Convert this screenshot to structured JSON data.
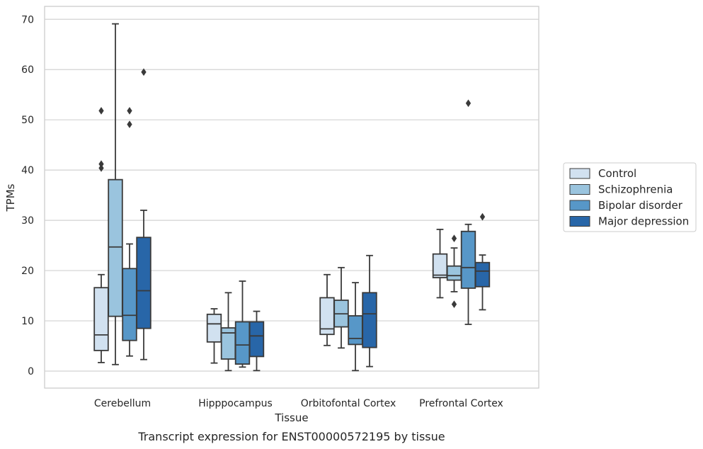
{
  "chart_data": {
    "type": "box",
    "title": "",
    "caption": "Transcript expression for ENST00000572195 by tissue",
    "xlabel": "Tissue",
    "ylabel": "TPMs",
    "ylim": [
      -3.3,
      72.5
    ],
    "yticks": [
      0,
      10,
      20,
      30,
      40,
      50,
      60,
      70
    ],
    "grid": "horizontal",
    "legend_position": "right",
    "categories": [
      "Cerebellum",
      "Hipppocampus",
      "Orbitofontal Cortex",
      "Prefrontal Cortex"
    ],
    "series": [
      {
        "name": "Control",
        "color": "#d1e1f0",
        "boxes": [
          {
            "min": 1.7,
            "q1": 4.1,
            "median": 7.2,
            "q3": 16.6,
            "max": 19.2,
            "outliers": [
              40.4,
              41.2,
              51.8
            ]
          },
          {
            "min": 1.6,
            "q1": 5.8,
            "median": 9.4,
            "q3": 11.3,
            "max": 12.4,
            "outliers": []
          },
          {
            "min": 5.1,
            "q1": 7.3,
            "median": 8.4,
            "q3": 14.6,
            "max": 19.2,
            "outliers": []
          },
          {
            "min": 14.6,
            "q1": 18.6,
            "median": 19.1,
            "q3": 23.3,
            "max": 28.2,
            "outliers": []
          }
        ]
      },
      {
        "name": "Schizophrenia",
        "color": "#9ac4de",
        "boxes": [
          {
            "min": 1.3,
            "q1": 10.9,
            "median": 24.7,
            "q3": 38.1,
            "max": 69.1,
            "outliers": []
          },
          {
            "min": 0.1,
            "q1": 2.4,
            "median": 7.6,
            "q3": 8.6,
            "max": 15.6,
            "outliers": []
          },
          {
            "min": 4.6,
            "q1": 8.8,
            "median": 11.4,
            "q3": 14.1,
            "max": 20.6,
            "outliers": []
          },
          {
            "min": 15.8,
            "q1": 18.1,
            "median": 19.0,
            "q3": 20.9,
            "max": 24.5,
            "outliers": [
              13.3,
              26.4
            ]
          }
        ]
      },
      {
        "name": "Bipolar disorder",
        "color": "#5797c8",
        "boxes": [
          {
            "min": 3.0,
            "q1": 6.1,
            "median": 11.1,
            "q3": 20.4,
            "max": 25.3,
            "outliers": [
              49.1,
              51.8
            ]
          },
          {
            "min": 0.8,
            "q1": 1.4,
            "median": 5.2,
            "q3": 9.8,
            "max": 17.9,
            "outliers": []
          },
          {
            "min": 0.1,
            "q1": 5.3,
            "median": 6.5,
            "q3": 11.0,
            "max": 17.6,
            "outliers": []
          },
          {
            "min": 9.3,
            "q1": 16.5,
            "median": 20.6,
            "q3": 27.8,
            "max": 29.2,
            "outliers": [
              53.3
            ]
          }
        ]
      },
      {
        "name": "Major depression",
        "color": "#2866a8",
        "boxes": [
          {
            "min": 2.3,
            "q1": 8.5,
            "median": 16.0,
            "q3": 26.6,
            "max": 32.0,
            "outliers": [
              59.5
            ]
          },
          {
            "min": 0.1,
            "q1": 2.9,
            "median": 7.0,
            "q3": 9.8,
            "max": 11.9,
            "outliers": []
          },
          {
            "min": 0.9,
            "q1": 4.7,
            "median": 11.4,
            "q3": 15.6,
            "max": 23.0,
            "outliers": []
          },
          {
            "min": 12.2,
            "q1": 16.8,
            "median": 19.9,
            "q3": 21.6,
            "max": 23.1,
            "outliers": [
              30.7
            ]
          }
        ]
      }
    ]
  }
}
